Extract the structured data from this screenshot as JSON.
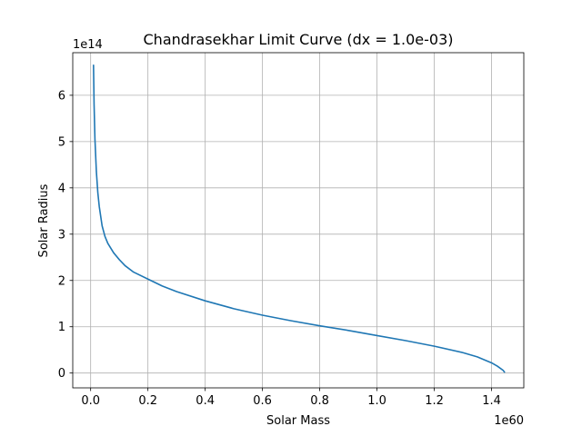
{
  "chart_data": {
    "type": "line",
    "title": "Chandrasekhar Limit Curve (dx = 1.0e-03)",
    "xlabel": "Solar Mass",
    "ylabel": "Solar Radius",
    "x_offset_label": "1e60",
    "y_offset_label": "1e14",
    "xlim": [
      -0.0625,
      1.5125
    ],
    "ylim": [
      -0.32,
      6.92
    ],
    "x_ticks": [
      0.0,
      0.2,
      0.4,
      0.6,
      0.8,
      1.0,
      1.2,
      1.4
    ],
    "x_tick_labels": [
      "0.0",
      "0.2",
      "0.4",
      "0.6",
      "0.8",
      "1.0",
      "1.2",
      "1.4"
    ],
    "y_ticks": [
      0,
      1,
      2,
      3,
      4,
      5,
      6
    ],
    "y_tick_labels": [
      "0",
      "1",
      "2",
      "3",
      "4",
      "5",
      "6"
    ],
    "grid": true,
    "series": [
      {
        "color": "#1f77b4",
        "x": [
          0.01,
          0.012,
          0.015,
          0.02,
          0.025,
          0.03,
          0.04,
          0.05,
          0.06,
          0.08,
          0.1,
          0.12,
          0.15,
          0.2,
          0.25,
          0.3,
          0.4,
          0.5,
          0.6,
          0.7,
          0.8,
          0.9,
          1.0,
          1.1,
          1.2,
          1.3,
          1.35,
          1.4,
          1.42,
          1.44,
          1.445
        ],
        "y": [
          6.65,
          5.8,
          5.05,
          4.35,
          3.9,
          3.6,
          3.18,
          2.95,
          2.8,
          2.6,
          2.45,
          2.32,
          2.18,
          2.03,
          1.88,
          1.76,
          1.56,
          1.39,
          1.25,
          1.13,
          1.02,
          0.92,
          0.81,
          0.7,
          0.58,
          0.44,
          0.35,
          0.22,
          0.15,
          0.06,
          0.02
        ]
      }
    ]
  }
}
